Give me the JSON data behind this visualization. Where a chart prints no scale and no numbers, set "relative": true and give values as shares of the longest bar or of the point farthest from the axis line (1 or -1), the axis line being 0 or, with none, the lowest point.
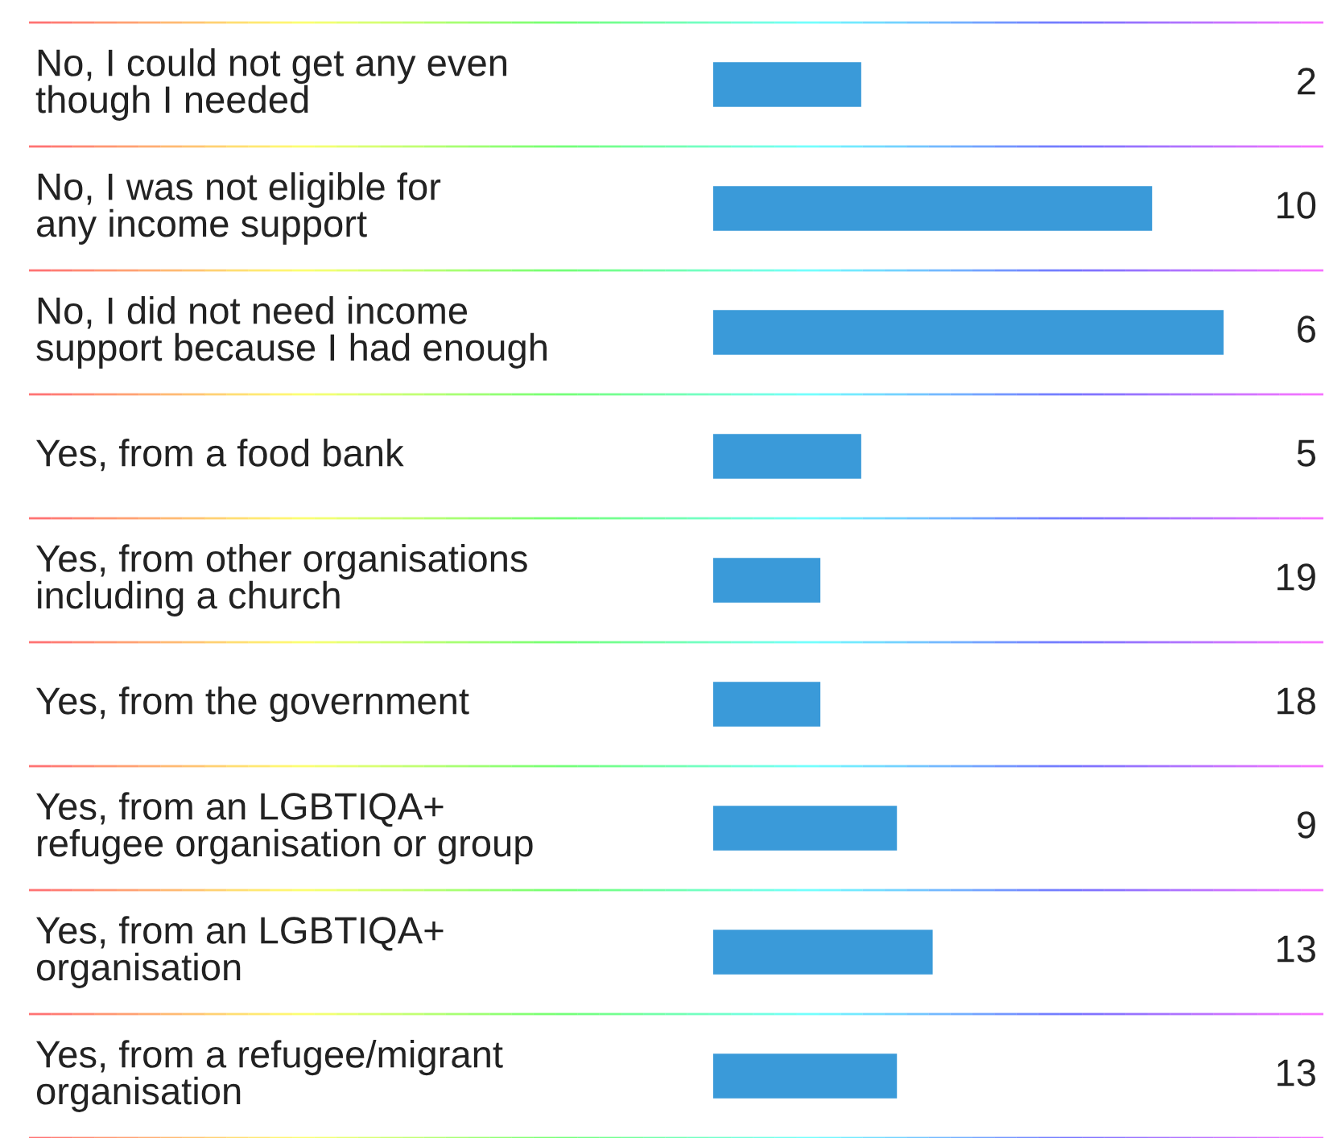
{
  "chart_data": {
    "type": "bar",
    "orientation": "horizontal",
    "relative": true,
    "categories": [
      "No, I could not get any even\nthough I needed",
      "No, I was not eligible for\nany income support",
      "No, I did not need income\nsupport because I had enough",
      "Yes, from a food bank",
      "Yes, from other organisations\nincluding a church",
      "Yes, from the government",
      "Yes, from an LGBTIQA+\nrefugee organisation or group",
      "Yes, from an LGBTIQA+\norganisation",
      "Yes, from a refugee/migrant\norganisation"
    ],
    "values": [
      0.29,
      0.86,
      1,
      0.29,
      0.21,
      0.21,
      0.36,
      0.43,
      0.36
    ],
    "annotations": [
      "2",
      "10",
      "6",
      "5",
      "19",
      "18",
      "9",
      "13",
      "13"
    ],
    "color": "#3a9ad9"
  }
}
